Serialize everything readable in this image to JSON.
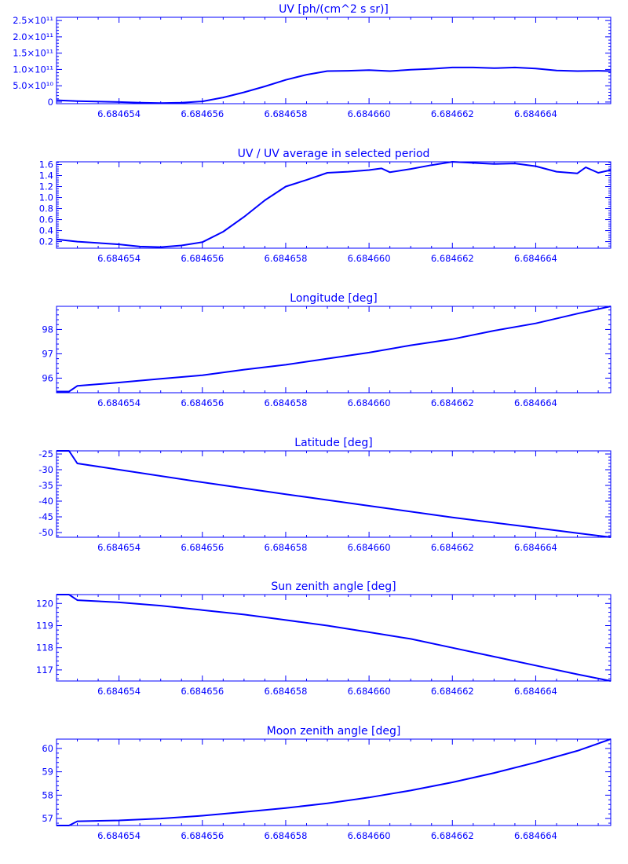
{
  "theme": {
    "color": "#0000ff",
    "background": "#ffffff"
  },
  "chart_data": [
    {
      "type": "line",
      "title": "UV [ph/(cm^2 s sr)]",
      "xlim": [
        6.6846525,
        6.6846658
      ],
      "ylim": [
        -5000000000,
        260000000000
      ],
      "x_ticks": [
        6.684654,
        6.684656,
        6.684658,
        6.68466,
        6.684662,
        6.684664
      ],
      "x_tick_labels": [
        "6.684654",
        "6.684656",
        "6.684658",
        "6.684660",
        "6.684662",
        "6.684664"
      ],
      "y_ticks": [
        0,
        50000000000,
        100000000000,
        150000000000,
        200000000000,
        250000000000
      ],
      "y_tick_labels": [
        "0",
        "5.0×10¹⁰",
        "1.0×10¹¹",
        "1.5×10¹¹",
        "2.0×10¹¹",
        "2.5×10¹¹"
      ],
      "series": [
        {
          "x": [
            6.6846525,
            6.684653,
            6.684654,
            6.6846545,
            6.684655,
            6.6846555,
            6.684656,
            6.6846565,
            6.684657,
            6.6846575,
            6.684658,
            6.6846585,
            6.684659,
            6.6846595,
            6.68466,
            6.6846605,
            6.684661,
            6.6846615,
            6.684662,
            6.6846625,
            6.684663,
            6.6846635,
            6.684664,
            6.6846645,
            6.684665,
            6.6846655,
            6.6846658
          ],
          "y": [
            5500000000,
            3000000000,
            0,
            -2000000000,
            -3000000000,
            -2000000000,
            2000000000,
            14000000000,
            30000000000,
            48000000000,
            68000000000,
            84000000000,
            95000000000,
            96000000000,
            98000000000,
            95000000000,
            99000000000,
            102000000000,
            106000000000,
            106000000000,
            104000000000,
            106000000000,
            103000000000,
            97000000000,
            95000000000,
            96000000000,
            95000000000
          ]
        }
      ]
    },
    {
      "type": "line",
      "title": "UV / UV average in selected period",
      "xlim": [
        6.6846525,
        6.6846658
      ],
      "ylim": [
        0.08,
        1.65
      ],
      "x_ticks": [
        6.684654,
        6.684656,
        6.684658,
        6.68466,
        6.684662,
        6.684664
      ],
      "x_tick_labels": [
        "6.684654",
        "6.684656",
        "6.684658",
        "6.684660",
        "6.684662",
        "6.684664"
      ],
      "y_ticks": [
        0.2,
        0.4,
        0.6,
        0.8,
        1.0,
        1.2,
        1.4,
        1.6
      ],
      "y_tick_labels": [
        "0.2",
        "0.4",
        "0.6",
        "0.8",
        "1.0",
        "1.2",
        "1.4",
        "1.6"
      ],
      "series": [
        {
          "x": [
            6.6846525,
            6.684653,
            6.684654,
            6.6846545,
            6.684655,
            6.6846555,
            6.684656,
            6.6846565,
            6.684657,
            6.6846575,
            6.684658,
            6.6846585,
            6.684659,
            6.6846595,
            6.68466,
            6.6846603,
            6.6846605,
            6.684661,
            6.6846615,
            6.684662,
            6.6846625,
            6.684663,
            6.6846635,
            6.684664,
            6.6846645,
            6.684665,
            6.6846652,
            6.6846655,
            6.6846658
          ],
          "y": [
            0.24,
            0.2,
            0.15,
            0.11,
            0.1,
            0.13,
            0.19,
            0.38,
            0.65,
            0.95,
            1.2,
            1.32,
            1.45,
            1.47,
            1.5,
            1.53,
            1.46,
            1.52,
            1.59,
            1.65,
            1.63,
            1.61,
            1.62,
            1.57,
            1.47,
            1.44,
            1.55,
            1.45,
            1.5
          ]
        }
      ]
    },
    {
      "type": "line",
      "title": "Longitude [deg]",
      "xlim": [
        6.6846525,
        6.6846658
      ],
      "ylim": [
        95.4,
        98.95
      ],
      "x_ticks": [
        6.684654,
        6.684656,
        6.684658,
        6.68466,
        6.684662,
        6.684664
      ],
      "x_tick_labels": [
        "6.684654",
        "6.684656",
        "6.684658",
        "6.684660",
        "6.684662",
        "6.684664"
      ],
      "y_ticks": [
        96,
        97,
        98
      ],
      "y_tick_labels": [
        "96",
        "97",
        "98"
      ],
      "series": [
        {
          "x": [
            6.6846525,
            6.6846528,
            6.684653,
            6.684654,
            6.684655,
            6.684656,
            6.684657,
            6.684658,
            6.684659,
            6.68466,
            6.684661,
            6.684662,
            6.684663,
            6.684664,
            6.684665,
            6.6846658
          ],
          "y": [
            95.45,
            95.45,
            95.68,
            95.82,
            95.97,
            96.12,
            96.35,
            96.55,
            96.8,
            97.05,
            97.35,
            97.6,
            97.95,
            98.25,
            98.65,
            98.95
          ]
        }
      ]
    },
    {
      "type": "line",
      "title": "Latitude [deg]",
      "xlim": [
        6.6846525,
        6.6846658
      ],
      "ylim": [
        -51.5,
        -24
      ],
      "x_ticks": [
        6.684654,
        6.684656,
        6.684658,
        6.68466,
        6.684662,
        6.684664
      ],
      "x_tick_labels": [
        "6.684654",
        "6.684656",
        "6.684658",
        "6.684660",
        "6.684662",
        "6.684664"
      ],
      "y_ticks": [
        -50,
        -45,
        -40,
        -35,
        -30,
        -25
      ],
      "y_tick_labels": [
        "-50",
        "-45",
        "-40",
        "-35",
        "-30",
        "-25"
      ],
      "series": [
        {
          "x": [
            6.6846525,
            6.6846528,
            6.684653,
            6.684654,
            6.684656,
            6.684658,
            6.68466,
            6.684662,
            6.684664,
            6.684665,
            6.6846658
          ],
          "y": [
            -24,
            -24,
            -28,
            -30,
            -34,
            -37.8,
            -41.5,
            -45.2,
            -48.5,
            -50.2,
            -51.5
          ]
        }
      ]
    },
    {
      "type": "line",
      "title": "Sun zenith angle [deg]",
      "xlim": [
        6.6846525,
        6.6846658
      ],
      "ylim": [
        116.5,
        120.4
      ],
      "x_ticks": [
        6.684654,
        6.684656,
        6.684658,
        6.68466,
        6.684662,
        6.684664
      ],
      "x_tick_labels": [
        "6.684654",
        "6.684656",
        "6.684658",
        "6.684660",
        "6.684662",
        "6.684664"
      ],
      "y_ticks": [
        117,
        118,
        119,
        120
      ],
      "y_tick_labels": [
        "117",
        "118",
        "119",
        "120"
      ],
      "series": [
        {
          "x": [
            6.6846525,
            6.6846528,
            6.684653,
            6.684654,
            6.684655,
            6.684656,
            6.684657,
            6.684658,
            6.684659,
            6.68466,
            6.684661,
            6.684662,
            6.684663,
            6.684664,
            6.684665,
            6.6846658
          ],
          "y": [
            120.4,
            120.4,
            120.15,
            120.05,
            119.9,
            119.7,
            119.5,
            119.25,
            119,
            118.7,
            118.4,
            118.0,
            117.6,
            117.2,
            116.8,
            116.5
          ]
        }
      ]
    },
    {
      "type": "line",
      "title": "Moon zenith angle [deg]",
      "xlim": [
        6.6846525,
        6.6846658
      ],
      "ylim": [
        56.7,
        60.4
      ],
      "x_ticks": [
        6.684654,
        6.684656,
        6.684658,
        6.68466,
        6.684662,
        6.684664
      ],
      "x_tick_labels": [
        "6.684654",
        "6.684656",
        "6.684658",
        "6.684660",
        "6.684662",
        "6.684664"
      ],
      "y_ticks": [
        57,
        58,
        59,
        60
      ],
      "y_tick_labels": [
        "57",
        "58",
        "59",
        "60"
      ],
      "series": [
        {
          "x": [
            6.6846525,
            6.6846528,
            6.684653,
            6.684654,
            6.684655,
            6.684656,
            6.684657,
            6.684658,
            6.684659,
            6.68466,
            6.684661,
            6.684662,
            6.684663,
            6.684664,
            6.684665,
            6.6846658
          ],
          "y": [
            56.7,
            56.7,
            56.88,
            56.92,
            57.0,
            57.12,
            57.28,
            57.45,
            57.65,
            57.9,
            58.2,
            58.55,
            58.95,
            59.4,
            59.9,
            60.4
          ]
        }
      ]
    }
  ]
}
